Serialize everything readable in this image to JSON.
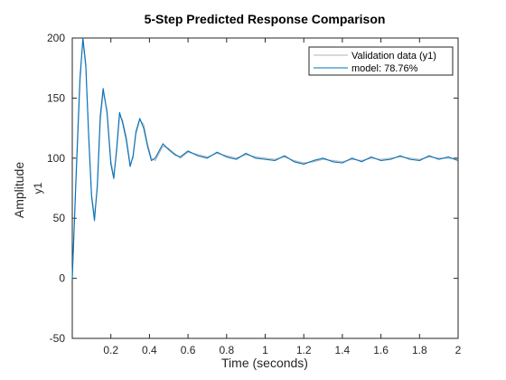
{
  "chart_data": {
    "type": "line",
    "title": "5-Step Predicted Response Comparison",
    "xlabel": "Time (seconds)",
    "ylabel": "Amplitude",
    "channel_label": "y1",
    "xlim": [
      0,
      2
    ],
    "ylim": [
      -50,
      200
    ],
    "xticks": [
      0.2,
      0.4,
      0.6,
      0.8,
      1,
      1.2,
      1.4,
      1.6,
      1.8,
      2
    ],
    "xtick_labels": [
      "0.2",
      "0.4",
      "0.6",
      "0.8",
      "1",
      "1.2",
      "1.4",
      "1.6",
      "1.8",
      "2"
    ],
    "yticks": [
      -50,
      0,
      50,
      100,
      150,
      200
    ],
    "ytick_labels": [
      "-50",
      "0",
      "50",
      "100",
      "150",
      "200"
    ],
    "grid": false,
    "legend_position": "top-right",
    "series": [
      {
        "name": "Validation data (y1)",
        "color": "#b3b3b3",
        "x": [
          0,
          0.02,
          0.04,
          0.055,
          0.07,
          0.085,
          0.1,
          0.115,
          0.13,
          0.145,
          0.16,
          0.18,
          0.2,
          0.215,
          0.23,
          0.245,
          0.26,
          0.28,
          0.3,
          0.315,
          0.33,
          0.35,
          0.37,
          0.39,
          0.41,
          0.43,
          0.45,
          0.47,
          0.5,
          0.53,
          0.56,
          0.6,
          0.65,
          0.7,
          0.75,
          0.8,
          0.85,
          0.9,
          0.95,
          1.0,
          1.05,
          1.1,
          1.15,
          1.2,
          1.25,
          1.3,
          1.35,
          1.4,
          1.45,
          1.5,
          1.55,
          1.6,
          1.65,
          1.7,
          1.75,
          1.8,
          1.85,
          1.9,
          1.95,
          2.0
        ],
        "y": [
          0,
          90,
          170,
          197,
          175,
          120,
          70,
          52,
          75,
          130,
          155,
          140,
          98,
          85,
          105,
          135,
          132,
          118,
          95,
          100,
          120,
          132,
          128,
          112,
          100,
          98,
          104,
          110,
          108,
          104,
          100,
          105,
          103,
          101,
          104,
          102,
          100,
          103,
          101,
          100,
          99,
          101,
          98,
          96,
          97,
          99,
          98,
          97,
          99,
          98,
          100,
          99,
          100,
          101,
          100,
          99,
          101,
          100,
          100,
          99
        ]
      },
      {
        "name": "model: 78.76%",
        "color": "#0072bd",
        "x": [
          0,
          0.02,
          0.04,
          0.055,
          0.07,
          0.085,
          0.1,
          0.115,
          0.13,
          0.145,
          0.16,
          0.18,
          0.2,
          0.215,
          0.23,
          0.245,
          0.26,
          0.28,
          0.3,
          0.315,
          0.33,
          0.35,
          0.37,
          0.39,
          0.41,
          0.43,
          0.45,
          0.47,
          0.5,
          0.53,
          0.56,
          0.6,
          0.65,
          0.7,
          0.75,
          0.8,
          0.85,
          0.9,
          0.95,
          1.0,
          1.05,
          1.1,
          1.15,
          1.2,
          1.25,
          1.3,
          1.35,
          1.4,
          1.45,
          1.5,
          1.55,
          1.6,
          1.65,
          1.7,
          1.75,
          1.8,
          1.85,
          1.9,
          1.95,
          2.0
        ],
        "y": [
          0,
          85,
          165,
          200,
          178,
          118,
          68,
          48,
          78,
          135,
          158,
          138,
          95,
          83,
          108,
          138,
          130,
          115,
          93,
          102,
          122,
          133,
          125,
          110,
          98,
          100,
          106,
          112,
          107,
          103,
          101,
          106,
          102,
          100,
          105,
          101,
          99,
          104,
          100,
          99,
          98,
          102,
          97,
          95,
          98,
          100,
          97,
          96,
          100,
          97,
          101,
          98,
          99,
          102,
          99,
          98,
          102,
          99,
          101,
          98
        ]
      }
    ]
  }
}
